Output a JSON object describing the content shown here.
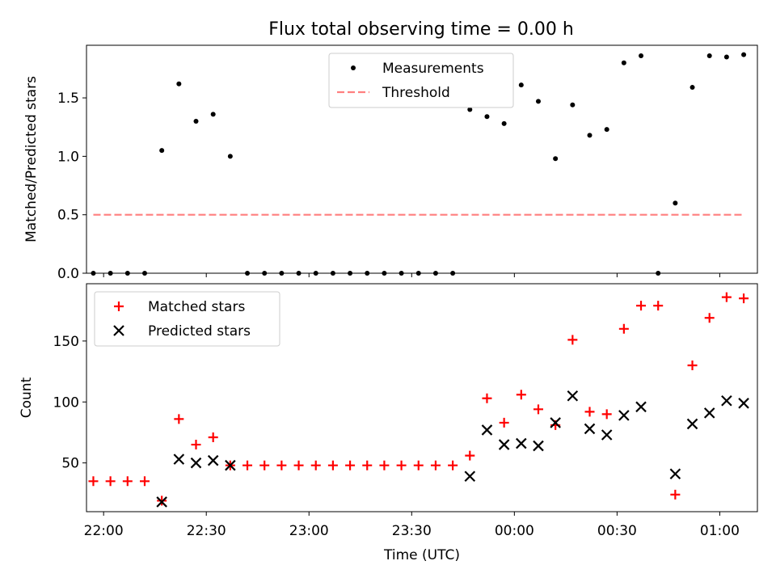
{
  "title": "Flux total observing time = 0.00 h",
  "chart_data": [
    {
      "type": "scatter",
      "ylabel": "Matched/Predicted stars",
      "ylim": [
        0,
        1.95
      ],
      "yticks": [
        0.0,
        0.5,
        1.0,
        1.5
      ],
      "ytick_labels": [
        "0.0",
        "0.5",
        "1.0",
        "1.5"
      ],
      "xlim": [
        "21:55",
        "01:11"
      ],
      "legend_position": "top-center",
      "series": [
        {
          "name": "Measurements",
          "color": "#000000",
          "marker": "dot",
          "points": [
            [
              "21:57",
              0.0
            ],
            [
              "22:02",
              0.0
            ],
            [
              "22:07",
              0.0
            ],
            [
              "22:12",
              0.0
            ],
            [
              "22:17",
              1.05
            ],
            [
              "22:22",
              1.62
            ],
            [
              "22:27",
              1.3
            ],
            [
              "22:32",
              1.36
            ],
            [
              "22:37",
              1.0
            ],
            [
              "22:42",
              0.0
            ],
            [
              "22:47",
              0.0
            ],
            [
              "22:52",
              0.0
            ],
            [
              "22:57",
              0.0
            ],
            [
              "23:02",
              0.0
            ],
            [
              "23:07",
              0.0
            ],
            [
              "23:12",
              0.0
            ],
            [
              "23:17",
              0.0
            ],
            [
              "23:22",
              0.0
            ],
            [
              "23:27",
              0.0
            ],
            [
              "23:32",
              0.0
            ],
            [
              "23:37",
              0.0
            ],
            [
              "23:42",
              0.0
            ],
            [
              "23:47",
              1.4
            ],
            [
              "23:52",
              1.34
            ],
            [
              "23:57",
              1.28
            ],
            [
              "00:02",
              1.61
            ],
            [
              "00:07",
              1.47
            ],
            [
              "00:12",
              0.98
            ],
            [
              "00:17",
              1.44
            ],
            [
              "00:22",
              1.18
            ],
            [
              "00:27",
              1.23
            ],
            [
              "00:32",
              1.8
            ],
            [
              "00:37",
              1.86
            ],
            [
              "00:42",
              0.0
            ],
            [
              "00:47",
              0.6
            ],
            [
              "00:52",
              1.59
            ],
            [
              "00:57",
              1.86
            ],
            [
              "01:02",
              1.85
            ],
            [
              "01:07",
              1.87
            ]
          ]
        },
        {
          "name": "Threshold",
          "color": "#ff7f7f",
          "line": "dashed",
          "points": [
            [
              "21:57",
              0.5
            ],
            [
              "01:07",
              0.5
            ]
          ]
        }
      ]
    },
    {
      "type": "scatter",
      "xlabel": "Time (UTC)",
      "ylabel": "Count",
      "ylim": [
        10,
        197
      ],
      "yticks": [
        50,
        100,
        150
      ],
      "ytick_labels": [
        "50",
        "100",
        "150"
      ],
      "xticks": [
        "22:00",
        "22:30",
        "23:00",
        "23:30",
        "00:00",
        "00:30",
        "01:00"
      ],
      "xlim": [
        "21:55",
        "01:11"
      ],
      "legend_position": "top-left",
      "series": [
        {
          "name": "Matched stars",
          "color": "#ff0000",
          "marker": "plus",
          "points": [
            [
              "21:57",
              35
            ],
            [
              "22:02",
              35
            ],
            [
              "22:07",
              35
            ],
            [
              "22:12",
              35
            ],
            [
              "22:17",
              19
            ],
            [
              "22:22",
              86
            ],
            [
              "22:27",
              65
            ],
            [
              "22:32",
              71
            ],
            [
              "22:37",
              48
            ],
            [
              "22:42",
              48
            ],
            [
              "22:47",
              48
            ],
            [
              "22:52",
              48
            ],
            [
              "22:57",
              48
            ],
            [
              "23:02",
              48
            ],
            [
              "23:07",
              48
            ],
            [
              "23:12",
              48
            ],
            [
              "23:17",
              48
            ],
            [
              "23:22",
              48
            ],
            [
              "23:27",
              48
            ],
            [
              "23:32",
              48
            ],
            [
              "23:37",
              48
            ],
            [
              "23:42",
              48
            ],
            [
              "23:47",
              56
            ],
            [
              "23:52",
              103
            ],
            [
              "23:57",
              83
            ],
            [
              "00:02",
              106
            ],
            [
              "00:07",
              94
            ],
            [
              "00:12",
              81
            ],
            [
              "00:17",
              151
            ],
            [
              "00:22",
              92
            ],
            [
              "00:27",
              90
            ],
            [
              "00:32",
              160
            ],
            [
              "00:37",
              179
            ],
            [
              "00:42",
              179
            ],
            [
              "00:47",
              24
            ],
            [
              "00:52",
              130
            ],
            [
              "00:57",
              169
            ],
            [
              "01:02",
              186
            ],
            [
              "01:07",
              185
            ]
          ]
        },
        {
          "name": "Predicted stars",
          "color": "#000000",
          "marker": "x",
          "points": [
            [
              "22:17",
              18
            ],
            [
              "22:22",
              53
            ],
            [
              "22:27",
              50
            ],
            [
              "22:32",
              52
            ],
            [
              "22:37",
              48
            ],
            [
              "23:47",
              39
            ],
            [
              "23:52",
              77
            ],
            [
              "23:57",
              65
            ],
            [
              "00:02",
              66
            ],
            [
              "00:07",
              64
            ],
            [
              "00:12",
              83
            ],
            [
              "00:17",
              105
            ],
            [
              "00:22",
              78
            ],
            [
              "00:27",
              73
            ],
            [
              "00:32",
              89
            ],
            [
              "00:37",
              96
            ],
            [
              "00:47",
              41
            ],
            [
              "00:52",
              82
            ],
            [
              "00:57",
              91
            ],
            [
              "01:02",
              101
            ],
            [
              "01:07",
              99
            ]
          ]
        }
      ]
    }
  ]
}
